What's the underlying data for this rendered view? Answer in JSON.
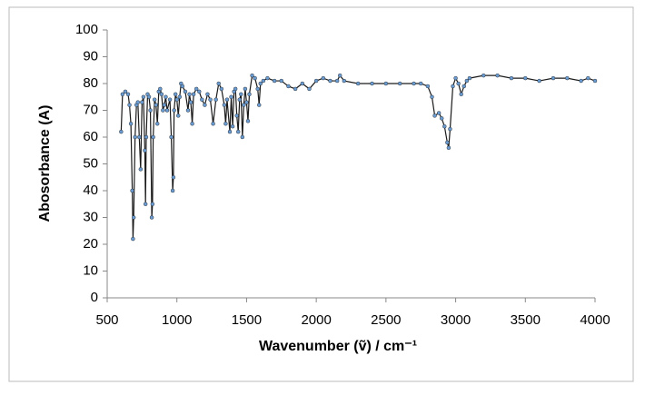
{
  "chart_data": {
    "type": "line",
    "x_label": "Wavenumber (ṽ) / cm⁻¹",
    "y_label": "Abosorbance (A)",
    "xlim": [
      500,
      4000
    ],
    "xticks": [
      500,
      1000,
      1500,
      2000,
      2500,
      3000,
      3500,
      4000
    ],
    "ylim": [
      0,
      100
    ],
    "yticks": [
      0,
      10,
      20,
      30,
      40,
      50,
      60,
      70,
      80,
      90,
      100
    ],
    "grid": false,
    "series": [
      {
        "color": "#6a9bd1",
        "line_color": "#1a1a1a",
        "x": [
          600,
          610,
          630,
          650,
          660,
          670,
          680,
          685,
          690,
          700,
          710,
          720,
          730,
          740,
          750,
          760,
          770,
          775,
          780,
          790,
          800,
          810,
          820,
          825,
          830,
          840,
          850,
          860,
          870,
          880,
          890,
          900,
          910,
          920,
          930,
          950,
          960,
          970,
          975,
          980,
          990,
          1000,
          1010,
          1020,
          1030,
          1040,
          1060,
          1080,
          1090,
          1100,
          1110,
          1120,
          1140,
          1160,
          1180,
          1200,
          1220,
          1240,
          1260,
          1280,
          1300,
          1320,
          1340,
          1350,
          1360,
          1380,
          1390,
          1400,
          1410,
          1420,
          1430,
          1440,
          1450,
          1460,
          1470,
          1480,
          1490,
          1500,
          1510,
          1520,
          1540,
          1560,
          1580,
          1590,
          1600,
          1620,
          1650,
          1700,
          1750,
          1800,
          1850,
          1900,
          1950,
          2000,
          2050,
          2100,
          2150,
          2170,
          2200,
          2300,
          2400,
          2500,
          2600,
          2700,
          2750,
          2800,
          2830,
          2850,
          2880,
          2900,
          2920,
          2940,
          2950,
          2960,
          2980,
          3000,
          3020,
          3040,
          3060,
          3080,
          3100,
          3200,
          3300,
          3400,
          3500,
          3600,
          3700,
          3800,
          3900,
          3950,
          4000
        ],
        "values": [
          62,
          76,
          77,
          76,
          72,
          65,
          40,
          22,
          30,
          60,
          72,
          73,
          60,
          48,
          73,
          75,
          55,
          35,
          60,
          76,
          75,
          70,
          30,
          35,
          60,
          74,
          72,
          65,
          77,
          78,
          76,
          70,
          72,
          75,
          70,
          74,
          60,
          40,
          45,
          70,
          76,
          74,
          68,
          75,
          80,
          79,
          77,
          70,
          76,
          73,
          65,
          76,
          78,
          77,
          74,
          72,
          76,
          74,
          65,
          74,
          80,
          78,
          72,
          65,
          74,
          62,
          75,
          64,
          77,
          78,
          68,
          62,
          74,
          76,
          60,
          72,
          78,
          73,
          66,
          76,
          83,
          82,
          78,
          72,
          80,
          81,
          82,
          81,
          81,
          79,
          78,
          80,
          78,
          81,
          82,
          81,
          81,
          83,
          81,
          80,
          80,
          80,
          80,
          80,
          80,
          79,
          75,
          68,
          69,
          67,
          64,
          58,
          56,
          63,
          79,
          82,
          80,
          76,
          79,
          81,
          82,
          83,
          83,
          82,
          82,
          81,
          82,
          82,
          81,
          82,
          81
        ]
      }
    ]
  }
}
